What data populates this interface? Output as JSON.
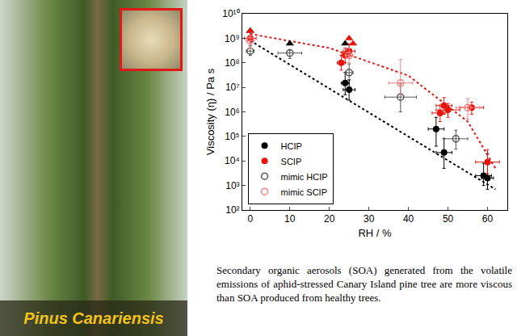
{
  "photo_label": "Pinus Canariensis",
  "caption": "Secondary organic aerosols (SOA) generated from the volatile emissions of aphid-stressed Canary Island pine tree are more viscous than SOA produced from healthy trees.",
  "chart_data": {
    "type": "scatter",
    "x_label": "RH / %",
    "y_label": "Viscosity (η) / Pa s",
    "log": "y",
    "grid": false,
    "legend": "lower left",
    "xlim": [
      -2,
      65
    ],
    "xticks": [
      0,
      10,
      20,
      30,
      40,
      50,
      60
    ],
    "ylim": [
      100,
      10000000000
    ],
    "yticks": [
      {
        "value": 100,
        "label": "10²"
      },
      {
        "value": 1000,
        "label": "10³"
      },
      {
        "value": 10000,
        "label": "10⁴"
      },
      {
        "value": 100000,
        "label": "10⁵"
      },
      {
        "value": 1000000,
        "label": "10⁶"
      },
      {
        "value": 10000000,
        "label": "10⁷"
      },
      {
        "value": 100000000,
        "label": "10⁸"
      },
      {
        "value": 1000000000,
        "label": "10⁹"
      },
      {
        "value": 10000000000,
        "label": "10¹⁰"
      }
    ],
    "series": [
      {
        "type": "line",
        "color": "#000000",
        "line_style": "dotted",
        "x": [
          0,
          62
        ],
        "values": [
          800000000,
          700
        ]
      },
      {
        "type": "line",
        "color": "#e8140c",
        "line_style": "dotted",
        "x": [
          0,
          20,
          40,
          55,
          62
        ],
        "values": [
          1500000000,
          400000000,
          30000000,
          400000,
          5000
        ]
      },
      {
        "type": "scatter",
        "color": "#000000",
        "marker": "triangle-up",
        "x": [
          0,
          10,
          24
        ],
        "values": [
          2000000000,
          600000000,
          600000000
        ]
      },
      {
        "type": "scatter",
        "color": "#e8140c",
        "marker": "triangle-up",
        "x": [
          0,
          25,
          26
        ],
        "values": [
          2000000000,
          1000000000,
          600000000
        ]
      },
      {
        "name": "HCIP",
        "type": "scatter",
        "color": "#000000",
        "marker": "circle",
        "x": [
          24,
          25,
          47,
          49,
          59,
          60
        ],
        "values": [
          15000000,
          8000000,
          200000,
          22000,
          2500,
          2000
        ],
        "error_x": [
          1,
          1.5,
          2,
          2,
          2,
          1.5
        ],
        "error_y": {
          "minus": [
            10000000,
            5000000,
            160000,
            17000,
            1500,
            1300
          ],
          "plus": [
            25000000,
            12000000,
            400000,
            58000,
            5500,
            18000
          ]
        }
      },
      {
        "name": "SCIP",
        "type": "scatter",
        "color": "#e8140c",
        "marker": "circle",
        "x": [
          0,
          23,
          24,
          25,
          48,
          49,
          50,
          56,
          60
        ],
        "values": [
          1000000000,
          100000000,
          200000000,
          300000000,
          900000,
          1800000,
          1200000,
          1500000,
          9000
        ],
        "error_x": [
          1.5,
          1,
          1,
          1.5,
          2,
          2,
          3,
          3,
          3
        ],
        "error_y": {
          "minus": [
            500000000,
            50000000,
            100000000,
            150000000,
            500000,
            1000000,
            600000,
            700000,
            6000
          ],
          "plus": [
            1000000000,
            100000000,
            200000000,
            300000000,
            1000000,
            2000000,
            1000000,
            1000000,
            20000
          ]
        }
      },
      {
        "name": "mimic HCIP",
        "type": "scatter",
        "color": "#555555",
        "marker": "circle-open",
        "x": [
          0,
          10,
          25,
          38,
          52
        ],
        "values": [
          300000000,
          250000000,
          40000000,
          4000000,
          80000
        ],
        "error_x": [
          1,
          3,
          1,
          4,
          3
        ],
        "error_y": {
          "minus": [
            100000000,
            100000000,
            20000000,
            3000000,
            50000
          ],
          "plus": [
            200000000,
            100000000,
            50000000,
            10000000,
            100000
          ]
        }
      },
      {
        "name": "mimic SCIP",
        "type": "scatter",
        "color": "#f08080",
        "marker": "circle-open",
        "x": [
          0,
          25,
          38,
          55
        ],
        "values": [
          800000000,
          200000000,
          15000000,
          1500000
        ],
        "error_x": [
          1,
          1,
          3,
          3
        ],
        "error_y": {
          "minus": [
            400000000,
            100000000,
            10000000,
            1000000
          ],
          "plus": [
            500000000,
            200000000,
            120000000,
            2000000
          ]
        }
      }
    ]
  }
}
